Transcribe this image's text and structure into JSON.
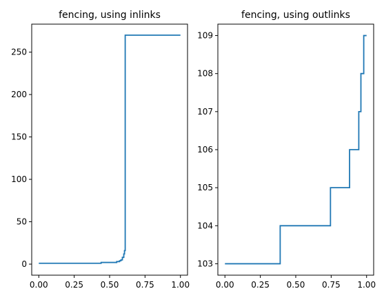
{
  "chart_data": [
    {
      "type": "line",
      "title": "fencing, using inlinks",
      "xlabel": "",
      "ylabel": "",
      "xlim": [
        -0.05,
        1.05
      ],
      "ylim": [
        -13,
        283
      ],
      "xticks": [
        0.0,
        0.25,
        0.5,
        0.75,
        1.0
      ],
      "xtick_labels": [
        "0.00",
        "0.25",
        "0.50",
        "0.75",
        "1.00"
      ],
      "yticks": [
        0,
        50,
        100,
        150,
        200,
        250
      ],
      "ytick_labels": [
        "0",
        "50",
        "100",
        "150",
        "200",
        "250"
      ],
      "grid": false,
      "series": [
        {
          "name": "inlinks",
          "color": "#1f77b4",
          "x": [
            0.0,
            0.44,
            0.44,
            0.55,
            0.55,
            0.57,
            0.57,
            0.58,
            0.58,
            0.59,
            0.59,
            0.6,
            0.6,
            0.605,
            0.605,
            0.61,
            0.61,
            1.0
          ],
          "y": [
            1,
            1,
            2,
            2,
            3,
            3,
            4,
            4,
            5,
            5,
            8,
            8,
            12,
            12,
            16,
            16,
            270,
            270
          ]
        }
      ]
    },
    {
      "type": "line",
      "title": "fencing, using outlinks",
      "xlabel": "",
      "ylabel": "",
      "xlim": [
        -0.05,
        1.05
      ],
      "ylim": [
        102.7,
        109.3
      ],
      "xticks": [
        0.0,
        0.25,
        0.5,
        0.75,
        1.0
      ],
      "xtick_labels": [
        "0.00",
        "0.25",
        "0.50",
        "0.75",
        "1.00"
      ],
      "yticks": [
        103,
        104,
        105,
        106,
        107,
        108,
        109
      ],
      "ytick_labels": [
        "103",
        "104",
        "105",
        "106",
        "107",
        "108",
        "109"
      ],
      "grid": false,
      "series": [
        {
          "name": "outlinks",
          "color": "#1f77b4",
          "x": [
            0.0,
            0.39,
            0.39,
            0.745,
            0.745,
            0.88,
            0.88,
            0.945,
            0.945,
            0.96,
            0.96,
            0.98,
            0.98,
            1.0
          ],
          "y": [
            103,
            103,
            104,
            104,
            105,
            105,
            106,
            106,
            107,
            107,
            108,
            108,
            109,
            109
          ]
        }
      ]
    }
  ]
}
